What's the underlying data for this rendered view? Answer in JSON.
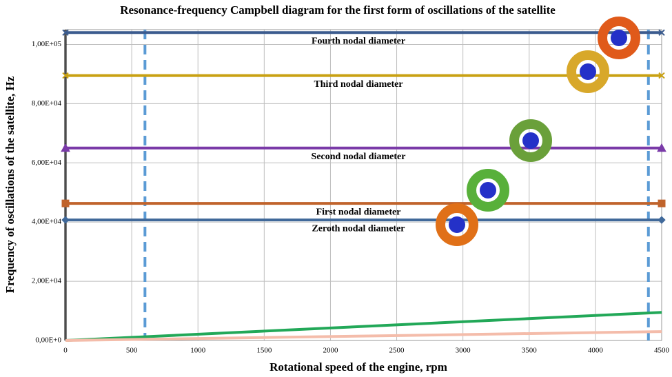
{
  "chart_data": {
    "type": "line",
    "title": "Resonance-frequency Campbell diagram for the first form of oscillations of the satellite",
    "x_label": "Rotational speed of the engine, rpm",
    "y_label": "Frequency of oscillations of the satellite, Hz",
    "xlim": [
      0,
      4500
    ],
    "xticks": [
      0,
      500,
      1000,
      1500,
      2000,
      2500,
      3000,
      3500,
      4000,
      4500
    ],
    "ylim": [
      0,
      105000
    ],
    "yticks": [
      {
        "value": 0,
        "label": "0,00E+0"
      },
      {
        "value": 20000,
        "label": "2,00E+04"
      },
      {
        "value": 40000,
        "label": "4,00E+04"
      },
      {
        "value": 60000,
        "label": "6,00E+04"
      },
      {
        "value": 80000,
        "label": "8,00E+04"
      },
      {
        "value": 100000,
        "label": "1,00E+05"
      }
    ],
    "grid": true,
    "vlines": [
      600,
      4400
    ],
    "series": [
      {
        "name": "Fourth nodal diameter",
        "color": "#3b5b8e",
        "marker": "x",
        "x": [
          0,
          4500
        ],
        "values": [
          104000,
          104000
        ]
      },
      {
        "name": "Third nodal diameter",
        "color": "#c9a112",
        "marker": "x",
        "x": [
          0,
          4500
        ],
        "values": [
          89500,
          89500
        ]
      },
      {
        "name": "Second nodal diameter",
        "color": "#7a3aa8",
        "marker": "triangle",
        "x": [
          0,
          4500
        ],
        "values": [
          65000,
          65000
        ]
      },
      {
        "name": "First nodal diameter",
        "color": "#c0632b",
        "marker": "square",
        "x": [
          0,
          4500
        ],
        "values": [
          46300,
          46300
        ]
      },
      {
        "name": "Zeroth nodal diameter",
        "color": "#40699a",
        "marker": "diamond",
        "x": [
          0,
          4500
        ],
        "values": [
          40700,
          40700
        ]
      },
      {
        "color": "#22a858",
        "x": [
          0,
          4500
        ],
        "values": [
          0,
          9500
        ]
      },
      {
        "color": "#f4bcaa",
        "x": [
          0,
          4500
        ],
        "values": [
          0,
          3000
        ]
      }
    ]
  }
}
